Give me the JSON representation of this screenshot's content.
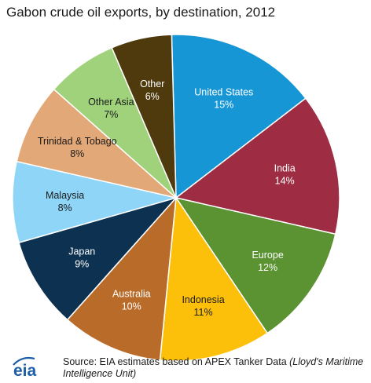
{
  "chart_data": {
    "type": "pie",
    "title": "Gabon crude oil exports, by destination, 2012",
    "slices": [
      {
        "label": "United States",
        "value": 15,
        "value_label": "15%",
        "color": "#1796d6",
        "text_color": "#ffffff"
      },
      {
        "label": "India",
        "value": 14,
        "value_label": "14%",
        "color": "#9e2d43",
        "text_color": "#ffffff"
      },
      {
        "label": "Europe",
        "value": 12,
        "value_label": "12%",
        "color": "#5b9232",
        "text_color": "#ffffff"
      },
      {
        "label": "Indonesia",
        "value": 11,
        "value_label": "11%",
        "color": "#fcc00a",
        "text_color": "#1a1a1a"
      },
      {
        "label": "Australia",
        "value": 10,
        "value_label": "10%",
        "color": "#b96c29",
        "text_color": "#ffffff"
      },
      {
        "label": "Japan",
        "value": 9,
        "value_label": "9%",
        "color": "#0d3150",
        "text_color": "#ffffff"
      },
      {
        "label": "Malaysia",
        "value": 8,
        "value_label": "8%",
        "color": "#8fd5f8",
        "text_color": "#1a1a1a"
      },
      {
        "label": "Trinidad & Tobago",
        "value": 8,
        "value_label": "8%",
        "color": "#e3a878",
        "text_color": "#1a1a1a"
      },
      {
        "label": "Other Asia",
        "value": 7,
        "value_label": "7%",
        "color": "#9fd27b",
        "text_color": "#1a1a1a"
      },
      {
        "label": "Other",
        "value": 6,
        "value_label": "6%",
        "color": "#4e3a0c",
        "text_color": "#ffffff"
      }
    ],
    "start_angle_deg": -1.55,
    "legend": "none"
  },
  "source": {
    "prefix": "Source: EIA estimates based on APEX Tanker  Data ",
    "italic": "(Lloyd's Maritime Intelligence Unit)"
  },
  "logo": {
    "text": "eia",
    "color": "#1e5ea8"
  }
}
